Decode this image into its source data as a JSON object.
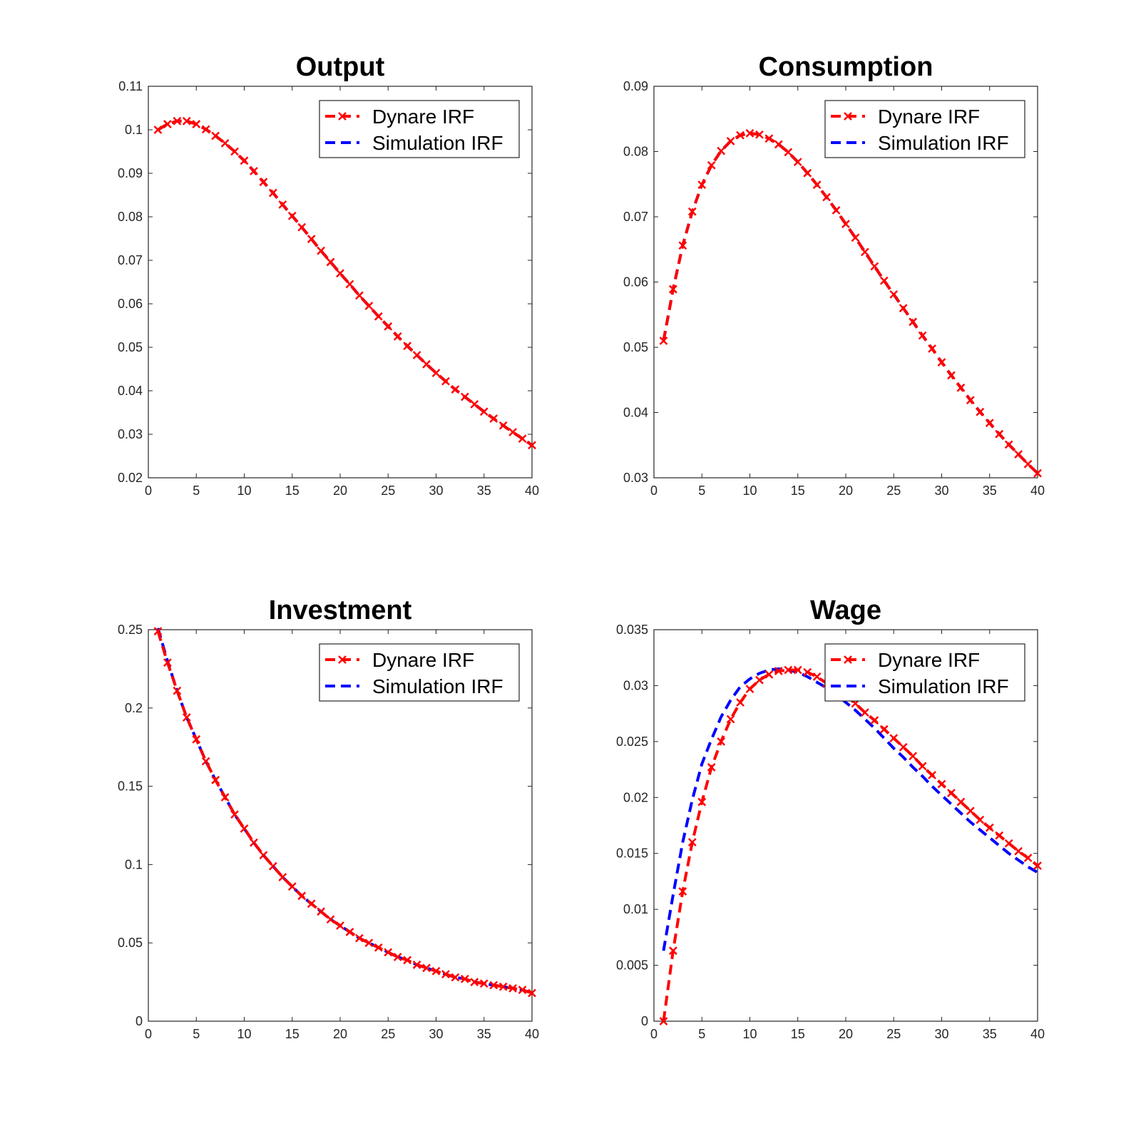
{
  "chart_data": [
    {
      "type": "line",
      "title": "Output",
      "xlim": [
        0,
        40
      ],
      "ylim": [
        0.02,
        0.11
      ],
      "xticks": [
        0,
        5,
        10,
        15,
        20,
        25,
        30,
        35,
        40
      ],
      "yticks": [
        0.02,
        0.03,
        0.04,
        0.05,
        0.06,
        0.07,
        0.08,
        0.09,
        0.1,
        0.11
      ],
      "legend_position": "top-right",
      "grid": false,
      "x": [
        1,
        2,
        3,
        4,
        5,
        6,
        7,
        8,
        9,
        10,
        11,
        12,
        13,
        14,
        15,
        16,
        17,
        18,
        19,
        20,
        21,
        22,
        23,
        24,
        25,
        26,
        27,
        28,
        29,
        30,
        31,
        32,
        33,
        34,
        35,
        36,
        37,
        38,
        39,
        40
      ],
      "series": [
        {
          "name": "Dynare IRF",
          "color": "#ff0000",
          "style": "dashed-x",
          "values": [
            0.1,
            0.1013,
            0.102,
            0.102,
            0.1013,
            0.1001,
            0.0986,
            0.0969,
            0.095,
            0.0929,
            0.0905,
            0.088,
            0.0855,
            0.0828,
            0.0802,
            0.0776,
            0.0749,
            0.0722,
            0.0696,
            0.067,
            0.0645,
            0.0619,
            0.0595,
            0.0571,
            0.0548,
            0.0525,
            0.0503,
            0.0482,
            0.0461,
            0.0441,
            0.0422,
            0.0403,
            0.0386,
            0.0369,
            0.0352,
            0.0336,
            0.032,
            0.0305,
            0.029,
            0.0275
          ]
        },
        {
          "name": "Simulation IRF",
          "color": "#0000ff",
          "style": "dashed",
          "values": [
            0.1,
            0.1013,
            0.102,
            0.102,
            0.1013,
            0.1001,
            0.0986,
            0.0969,
            0.095,
            0.0929,
            0.0905,
            0.088,
            0.0855,
            0.0828,
            0.0802,
            0.0776,
            0.0749,
            0.0722,
            0.0696,
            0.067,
            0.0645,
            0.0619,
            0.0595,
            0.0571,
            0.0548,
            0.0525,
            0.0503,
            0.0482,
            0.0461,
            0.0441,
            0.0422,
            0.0403,
            0.0386,
            0.0369,
            0.0352,
            0.0336,
            0.032,
            0.0305,
            0.029,
            0.0275
          ]
        }
      ]
    },
    {
      "type": "line",
      "title": "Consumption",
      "xlim": [
        0,
        40
      ],
      "ylim": [
        0.03,
        0.09
      ],
      "xticks": [
        0,
        5,
        10,
        15,
        20,
        25,
        30,
        35,
        40
      ],
      "yticks": [
        0.03,
        0.04,
        0.05,
        0.06,
        0.07,
        0.08,
        0.09
      ],
      "legend_position": "top-right",
      "grid": false,
      "x": [
        1,
        2,
        3,
        4,
        5,
        6,
        7,
        8,
        9,
        10,
        11,
        12,
        13,
        14,
        15,
        16,
        17,
        18,
        19,
        20,
        21,
        22,
        23,
        24,
        25,
        26,
        27,
        28,
        29,
        30,
        31,
        32,
        33,
        34,
        35,
        36,
        37,
        38,
        39,
        40
      ],
      "series": [
        {
          "name": "Dynare IRF",
          "color": "#ff0000",
          "style": "dashed-x",
          "values": [
            0.051,
            0.0589,
            0.0656,
            0.0708,
            0.0749,
            0.0779,
            0.0801,
            0.0816,
            0.0825,
            0.0828,
            0.0826,
            0.082,
            0.0811,
            0.0799,
            0.0784,
            0.0767,
            0.0749,
            0.073,
            0.071,
            0.0689,
            0.0668,
            0.0646,
            0.0624,
            0.0602,
            0.0581,
            0.056,
            0.0539,
            0.0518,
            0.0498,
            0.0477,
            0.0457,
            0.0438,
            0.0419,
            0.0401,
            0.0384,
            0.0367,
            0.0351,
            0.0336,
            0.0321,
            0.0307
          ]
        },
        {
          "name": "Simulation IRF",
          "color": "#0000ff",
          "style": "dashed",
          "values": [
            0.051,
            0.0589,
            0.0656,
            0.0708,
            0.0749,
            0.0779,
            0.0801,
            0.0816,
            0.0825,
            0.0828,
            0.0826,
            0.082,
            0.0811,
            0.0799,
            0.0784,
            0.0767,
            0.0749,
            0.073,
            0.071,
            0.0689,
            0.0668,
            0.0646,
            0.0624,
            0.0602,
            0.0581,
            0.056,
            0.0539,
            0.0518,
            0.0498,
            0.0477,
            0.0457,
            0.0438,
            0.0419,
            0.0401,
            0.0384,
            0.0367,
            0.0351,
            0.0336,
            0.0321,
            0.0307
          ]
        }
      ]
    },
    {
      "type": "line",
      "title": "Investment",
      "xlim": [
        0,
        40
      ],
      "ylim": [
        0,
        0.25
      ],
      "xticks": [
        0,
        5,
        10,
        15,
        20,
        25,
        30,
        35,
        40
      ],
      "yticks": [
        0,
        0.05,
        0.1,
        0.15,
        0.2,
        0.25
      ],
      "legend_position": "top-right",
      "grid": false,
      "x": [
        1,
        2,
        3,
        4,
        5,
        6,
        7,
        8,
        9,
        10,
        11,
        12,
        13,
        14,
        15,
        16,
        17,
        18,
        19,
        20,
        21,
        22,
        23,
        24,
        25,
        26,
        27,
        28,
        29,
        30,
        31,
        32,
        33,
        34,
        35,
        36,
        37,
        38,
        39,
        40
      ],
      "series": [
        {
          "name": "Dynare IRF",
          "color": "#ff0000",
          "style": "dashed-x",
          "values": [
            0.249,
            0.229,
            0.211,
            0.194,
            0.18,
            0.166,
            0.154,
            0.143,
            0.132,
            0.123,
            0.114,
            0.106,
            0.099,
            0.092,
            0.086,
            0.08,
            0.075,
            0.07,
            0.065,
            0.061,
            0.057,
            0.053,
            0.05,
            0.047,
            0.044,
            0.041,
            0.039,
            0.036,
            0.034,
            0.032,
            0.03,
            0.028,
            0.027,
            0.025,
            0.024,
            0.023,
            0.022,
            0.021,
            0.02,
            0.018
          ]
        },
        {
          "name": "Simulation IRF",
          "color": "#0000ff",
          "style": "dashed",
          "values": [
            0.251,
            0.23,
            0.211,
            0.194,
            0.18,
            0.166,
            0.154,
            0.143,
            0.132,
            0.123,
            0.114,
            0.106,
            0.099,
            0.092,
            0.086,
            0.08,
            0.075,
            0.07,
            0.065,
            0.061,
            0.057,
            0.053,
            0.05,
            0.047,
            0.044,
            0.041,
            0.039,
            0.036,
            0.034,
            0.032,
            0.03,
            0.028,
            0.027,
            0.025,
            0.024,
            0.023,
            0.022,
            0.021,
            0.02,
            0.018
          ]
        }
      ]
    },
    {
      "type": "line",
      "title": "Wage",
      "xlim": [
        0,
        40
      ],
      "ylim": [
        0,
        0.035
      ],
      "xticks": [
        0,
        5,
        10,
        15,
        20,
        25,
        30,
        35,
        40
      ],
      "yticks": [
        0,
        0.005,
        0.01,
        0.015,
        0.02,
        0.025,
        0.03,
        0.035
      ],
      "legend_position": "top-right",
      "grid": false,
      "x": [
        1,
        2,
        3,
        4,
        5,
        6,
        7,
        8,
        9,
        10,
        11,
        12,
        13,
        14,
        15,
        16,
        17,
        18,
        19,
        20,
        21,
        22,
        23,
        24,
        25,
        26,
        27,
        28,
        29,
        30,
        31,
        32,
        33,
        34,
        35,
        36,
        37,
        38,
        39,
        40
      ],
      "series": [
        {
          "name": "Dynare IRF",
          "color": "#ff0000",
          "style": "dashed-x",
          "values": [
            0.0,
            0.0063,
            0.0116,
            0.016,
            0.0196,
            0.0227,
            0.025,
            0.027,
            0.0285,
            0.0297,
            0.0305,
            0.031,
            0.0313,
            0.0314,
            0.0314,
            0.0312,
            0.0308,
            0.0302,
            0.0297,
            0.0291,
            0.0284,
            0.0276,
            0.0269,
            0.0261,
            0.0253,
            0.0245,
            0.0237,
            0.0228,
            0.022,
            0.0212,
            0.0204,
            0.0196,
            0.0188,
            0.018,
            0.0173,
            0.0166,
            0.0159,
            0.0152,
            0.0146,
            0.0139
          ]
        },
        {
          "name": "Simulation IRF",
          "color": "#0000ff",
          "style": "dashed",
          "values": [
            0.0063,
            0.0113,
            0.016,
            0.0198,
            0.023,
            0.0252,
            0.0272,
            0.0287,
            0.0299,
            0.0306,
            0.0311,
            0.0314,
            0.0315,
            0.0314,
            0.0312,
            0.0308,
            0.0303,
            0.0298,
            0.0292,
            0.0285,
            0.0278,
            0.027,
            0.0262,
            0.0253,
            0.0244,
            0.0236,
            0.0227,
            0.0219,
            0.021,
            0.0202,
            0.0194,
            0.0186,
            0.0178,
            0.0171,
            0.0164,
            0.0157,
            0.015,
            0.0144,
            0.0138,
            0.0133
          ]
        }
      ]
    }
  ]
}
